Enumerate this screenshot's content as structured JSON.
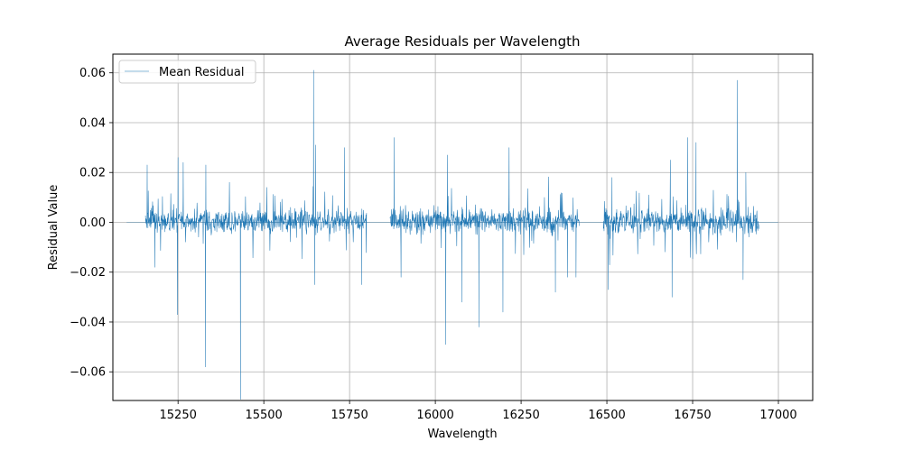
{
  "chart_data": {
    "type": "line",
    "title": "Average Residuals per Wavelength",
    "xlabel": "Wavelength",
    "ylabel": "Residual Value",
    "xlim": [
      15060,
      17100
    ],
    "ylim": [
      -0.0715,
      0.0675
    ],
    "x_ticks": [
      15250,
      15500,
      15750,
      16000,
      16250,
      16500,
      16750,
      17000
    ],
    "x_tick_labels": [
      "15250",
      "15500",
      "15750",
      "16000",
      "16250",
      "16500",
      "16750",
      "17000"
    ],
    "y_ticks": [
      -0.06,
      -0.04,
      -0.02,
      0.0,
      0.02,
      0.04,
      0.06
    ],
    "y_tick_labels": [
      "−0.06",
      "−0.04",
      "−0.02",
      "0.00",
      "0.02",
      "0.04",
      "0.06"
    ],
    "grid": true,
    "legend": {
      "position": "top-left"
    },
    "series": [
      {
        "name": "Mean Residual",
        "color": "#1f77b4",
        "zero_baseline_x": [
          15100,
          17000
        ],
        "segments": [
          {
            "x_start": 15155,
            "x_end": 15800
          },
          {
            "x_start": 15868,
            "x_end": 16420
          },
          {
            "x_start": 16490,
            "x_end": 16945
          }
        ],
        "typical_range": [
          -0.01,
          0.015
        ],
        "extremes": [
          {
            "x": 15160,
            "y": 0.023
          },
          {
            "x": 15182,
            "y": -0.018
          },
          {
            "x": 15248,
            "y": -0.037
          },
          {
            "x": 15250,
            "y": 0.026
          },
          {
            "x": 15265,
            "y": 0.024
          },
          {
            "x": 15330,
            "y": -0.058
          },
          {
            "x": 15331,
            "y": 0.023
          },
          {
            "x": 15432,
            "y": -0.071
          },
          {
            "x": 15645,
            "y": 0.061
          },
          {
            "x": 15648,
            "y": -0.025
          },
          {
            "x": 15651,
            "y": 0.031
          },
          {
            "x": 15735,
            "y": 0.03
          },
          {
            "x": 15785,
            "y": -0.025
          },
          {
            "x": 15880,
            "y": 0.034
          },
          {
            "x": 15900,
            "y": -0.022
          },
          {
            "x": 16030,
            "y": -0.049
          },
          {
            "x": 16035,
            "y": 0.027
          },
          {
            "x": 16077,
            "y": -0.032
          },
          {
            "x": 16127,
            "y": -0.042
          },
          {
            "x": 16197,
            "y": -0.036
          },
          {
            "x": 16215,
            "y": 0.03
          },
          {
            "x": 16350,
            "y": -0.028
          },
          {
            "x": 16385,
            "y": -0.022
          },
          {
            "x": 16410,
            "y": -0.022
          },
          {
            "x": 16504,
            "y": -0.027
          },
          {
            "x": 16515,
            "y": 0.018
          },
          {
            "x": 16685,
            "y": 0.025
          },
          {
            "x": 16690,
            "y": -0.03
          },
          {
            "x": 16735,
            "y": 0.034
          },
          {
            "x": 16760,
            "y": 0.032
          },
          {
            "x": 16880,
            "y": 0.057
          },
          {
            "x": 16897,
            "y": -0.023
          },
          {
            "x": 16905,
            "y": 0.02
          }
        ]
      }
    ]
  }
}
